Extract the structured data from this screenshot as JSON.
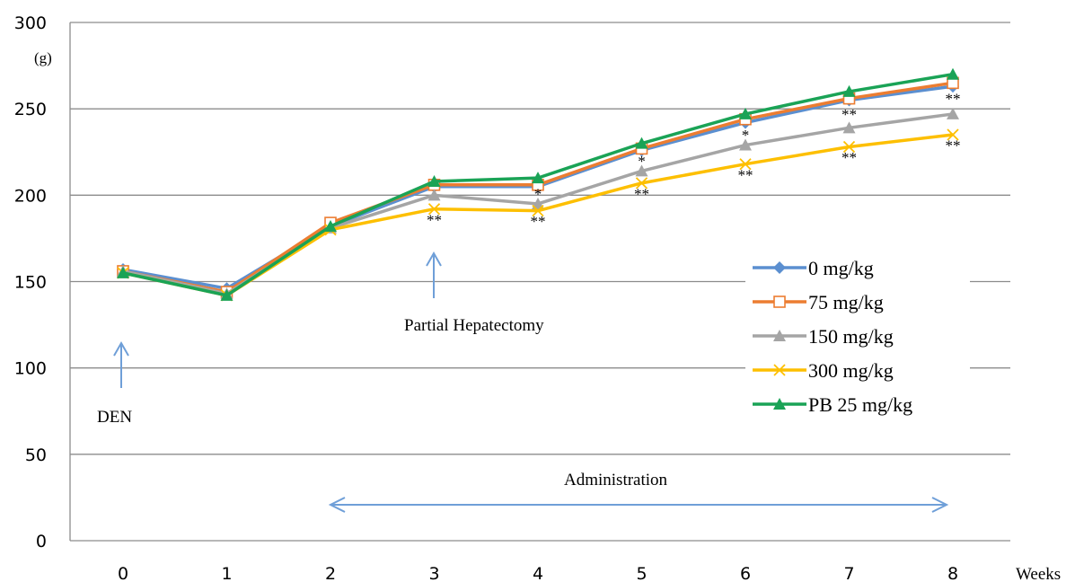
{
  "chart_data": {
    "type": "line",
    "title": "",
    "xlabel": "Weeks",
    "ylabel": "(g)",
    "x": [
      0,
      1,
      2,
      3,
      4,
      5,
      6,
      7,
      8
    ],
    "x_ticks": [
      "0",
      "1",
      "2",
      "3",
      "4",
      "5",
      "6",
      "7",
      "8"
    ],
    "ylim": [
      0,
      300
    ],
    "y_ticks": [
      "0",
      "50",
      "100",
      "150",
      "200",
      "250",
      "300"
    ],
    "y_tick_values": [
      0,
      50,
      100,
      150,
      200,
      250,
      300
    ],
    "grid": true,
    "legend_position": "right",
    "series": [
      {
        "name": "0 mg/kg",
        "color": "#5b8fd0",
        "marker": "diamond",
        "values": [
          157,
          146,
          182,
          205,
          205,
          226,
          242,
          255,
          263
        ]
      },
      {
        "name": "75 mg/kg",
        "color": "#ec7d31",
        "marker": "open-square",
        "values": [
          156,
          144,
          184,
          206,
          206,
          227,
          244,
          256,
          265
        ]
      },
      {
        "name": "150 mg/kg",
        "color": "#a5a5a5",
        "marker": "triangle",
        "values": [
          156,
          143,
          181,
          200,
          195,
          214,
          229,
          239,
          247
        ]
      },
      {
        "name": "300 mg/kg",
        "color": "#fdbf00",
        "marker": "x",
        "values": [
          155,
          142,
          180,
          192,
          191,
          207,
          218,
          228,
          235
        ]
      },
      {
        "name": "PB 25 mg/kg",
        "color": "#1aa356",
        "marker": "filled-triangle",
        "values": [
          155,
          142,
          182,
          208,
          210,
          230,
          247,
          260,
          270
        ]
      }
    ],
    "significance": [
      {
        "x": 3,
        "y": 186,
        "text": "**"
      },
      {
        "x": 4,
        "y": 201,
        "text": "*"
      },
      {
        "x": 4,
        "y": 185,
        "text": "**"
      },
      {
        "x": 5,
        "y": 220,
        "text": "*"
      },
      {
        "x": 5,
        "y": 201,
        "text": "**"
      },
      {
        "x": 6,
        "y": 235,
        "text": "*"
      },
      {
        "x": 6,
        "y": 212,
        "text": "**"
      },
      {
        "x": 7,
        "y": 247,
        "text": "**"
      },
      {
        "x": 7,
        "y": 222,
        "text": "**"
      },
      {
        "x": 8,
        "y": 256,
        "text": "**"
      },
      {
        "x": 8,
        "y": 229,
        "text": "**"
      }
    ],
    "annotations": {
      "den": "DEN",
      "hepatectomy": "Partial Hepatectomy",
      "administration": "Administration"
    }
  }
}
